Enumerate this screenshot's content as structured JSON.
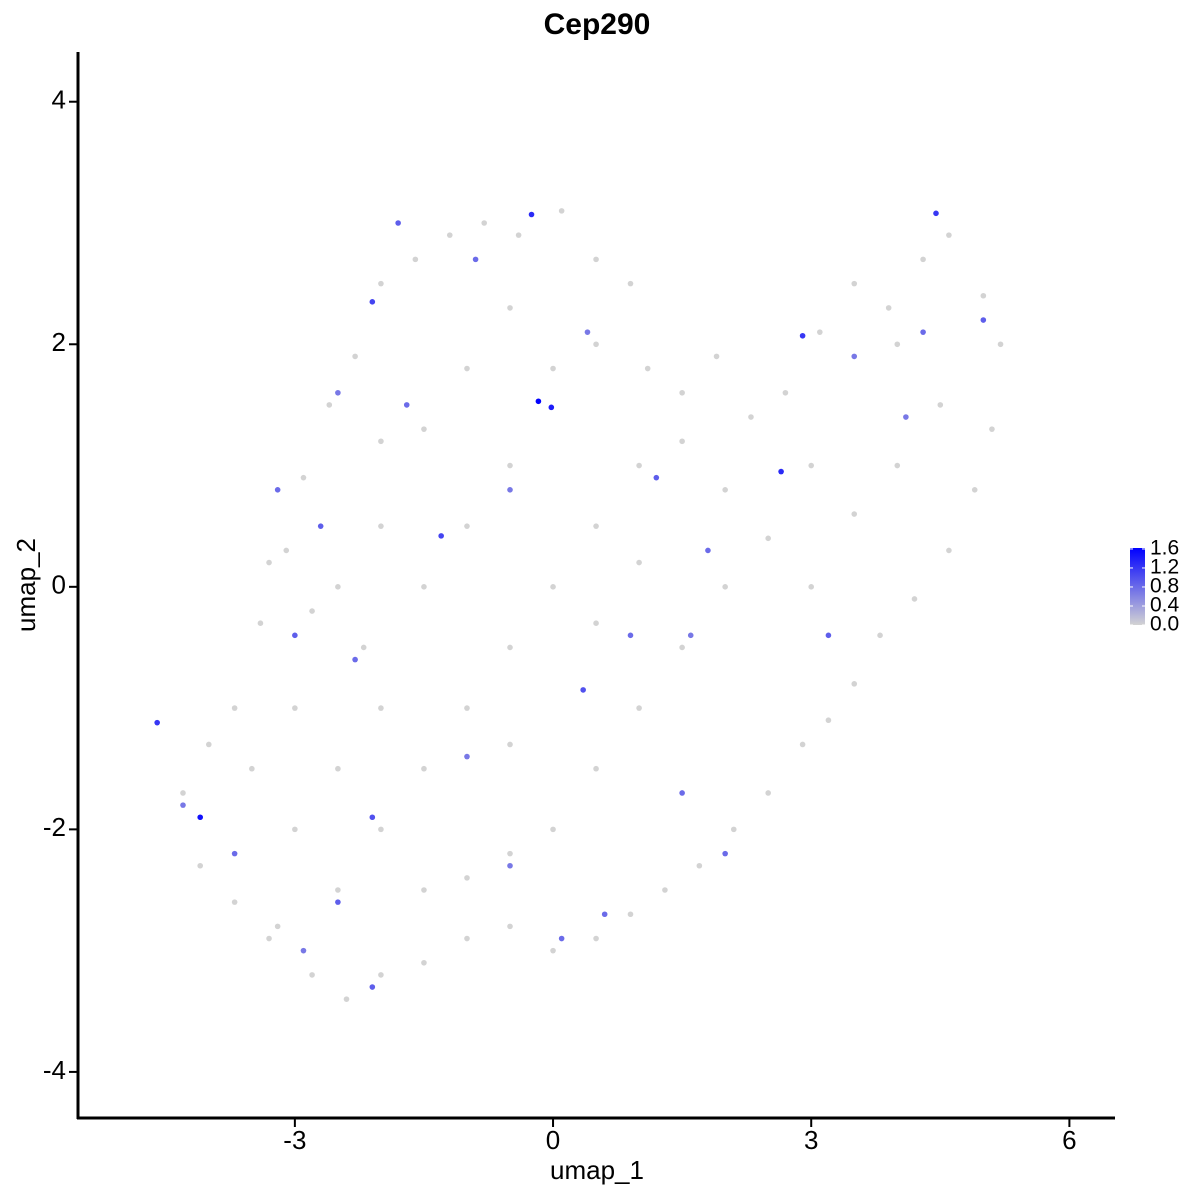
{
  "chart_data": {
    "type": "scatter",
    "title": "Cep290",
    "x_label": "umap_1",
    "y_label": "umap_2",
    "xlim": [
      -5.52,
      6.53
    ],
    "ylim": [
      -4.38,
      4.41
    ],
    "xticks": [
      -3,
      0,
      3,
      6
    ],
    "yticks": [
      -4,
      -2,
      0,
      2,
      4
    ],
    "low_color": "#d3d3d3",
    "high_color": "#0000ff",
    "colorlim": [
      0,
      1.62
    ],
    "colorticks": [
      {
        "value": 0,
        "label": "0.0"
      },
      0.4,
      0.8,
      1.2,
      1.6
    ],
    "x": [
      -3.5,
      -3.2,
      -3.0,
      -2.8,
      -3.1,
      -2.9,
      -2.6,
      -2.3,
      -2.0,
      -1.6,
      -1.2,
      -0.8,
      -0.4,
      0.1,
      0.5,
      0.9,
      1.1,
      1.5,
      1.9,
      2.3,
      2.7,
      3.1,
      3.5,
      3.9,
      4.3,
      4.6,
      5.0,
      5.2,
      5.1,
      4.9,
      4.6,
      4.2,
      3.8,
      3.5,
      3.2,
      2.9,
      2.5,
      2.1,
      1.7,
      1.3,
      0.9,
      0.5,
      0.0,
      -0.5,
      -1.0,
      -1.5,
      -2.0,
      -2.4,
      -2.8,
      -3.3,
      -3.7,
      -4.1,
      -4.3,
      -4.0,
      -3.7,
      -3.4,
      -3.3,
      -2.5,
      -2.0,
      -1.5,
      -1.0,
      -0.5,
      0,
      0.5,
      1.0,
      1.5,
      2.0,
      2.5,
      3.0,
      3.5,
      4.0,
      4.5,
      4.0,
      3.0,
      2.0,
      1.5,
      1.0,
      0.5,
      0,
      -0.5,
      -1.0,
      -1.5,
      -2.5,
      -3.0,
      -2.0,
      -1.5,
      -2.0,
      -2.5,
      -2.2,
      -1.0,
      -0.5,
      0,
      -1.0,
      -1.5,
      -2.0,
      -0.5,
      0.5,
      1.0,
      0.5,
      -0.5,
      -3.2,
      -2.5,
      -1.8,
      -0.9,
      0.4,
      1.2,
      1.8,
      3.5,
      4.3,
      5.0,
      4.1,
      -2.3,
      -3.0,
      -1.0,
      0.9,
      1.5,
      -0.5,
      -2.5,
      -3.7,
      -4.3,
      0.1,
      -2.1,
      -2.9,
      0.6,
      3.2,
      1.6,
      -1.7,
      -0.5,
      -2.7,
      2.0,
      -4.6,
      -4.1,
      -0.17,
      -0.02,
      -0.25,
      4.45,
      2.65,
      2.9,
      -2.1,
      -1.3,
      0.35,
      -2.1
    ],
    "y": [
      -1.5,
      -2.8,
      -1.0,
      -0.2,
      0.3,
      0.9,
      1.5,
      1.9,
      2.5,
      2.7,
      2.9,
      3.0,
      2.9,
      3.1,
      2.7,
      2.5,
      1.8,
      1.6,
      1.9,
      1.4,
      1.6,
      2.1,
      2.5,
      2.3,
      2.7,
      2.9,
      2.4,
      2.0,
      1.3,
      0.8,
      0.3,
      -0.1,
      -0.4,
      -0.8,
      -1.1,
      -1.3,
      -1.7,
      -2.0,
      -2.3,
      -2.5,
      -2.7,
      -2.9,
      -3.0,
      -2.8,
      -2.9,
      -3.1,
      -3.2,
      -3.4,
      -3.2,
      -2.9,
      -2.6,
      -2.3,
      -1.7,
      -1.3,
      -1.0,
      -0.3,
      0.2,
      -2.5,
      -2.0,
      -1.5,
      -1.0,
      -0.5,
      0,
      0.5,
      1.0,
      1.2,
      0.8,
      0.4,
      0.0,
      0.6,
      1.0,
      1.5,
      2.0,
      1.0,
      0.0,
      -0.5,
      -1.0,
      -1.5,
      -2,
      -2.2,
      -2.4,
      -2.5,
      -1.5,
      -2.0,
      -1.0,
      0.0,
      0.5,
      0.0,
      -0.5,
      0.5,
      1.0,
      1.8,
      1.8,
      1.3,
      1.2,
      2.3,
      2.0,
      0.2,
      -0.3,
      -1.3,
      0.8,
      1.6,
      3.0,
      2.7,
      2.1,
      0.9,
      0.3,
      1.9,
      2.1,
      2.2,
      1.4,
      -0.6,
      -0.4,
      -1.4,
      -0.4,
      -1.7,
      -2.3,
      -2.6,
      -2.2,
      -1.8,
      -2.9,
      -3.3,
      -3.0,
      -2.7,
      -0.4,
      -0.4,
      1.5,
      0.8,
      0.5,
      -2.2,
      -1.12,
      -1.9,
      1.53,
      1.48,
      3.07,
      3.08,
      0.95,
      2.07,
      2.35,
      0.42,
      -0.85,
      -1.9
    ],
    "values": [
      0,
      0,
      0,
      0,
      0,
      0,
      0,
      0,
      0,
      0,
      0,
      0,
      0,
      0,
      0,
      0,
      0,
      0,
      0,
      0,
      0,
      0,
      0,
      0,
      0,
      0,
      0,
      0,
      0,
      0,
      0,
      0,
      0,
      0,
      0,
      0,
      0,
      0,
      0,
      0,
      0,
      0,
      0,
      0,
      0,
      0,
      0,
      0,
      0,
      0,
      0,
      0,
      0,
      0,
      0,
      0,
      0,
      0,
      0,
      0,
      0,
      0,
      0,
      0,
      0,
      0,
      0,
      0,
      0,
      0,
      0,
      0,
      0,
      0,
      0,
      0,
      0,
      0,
      0,
      0,
      0,
      0,
      0,
      0,
      0,
      0,
      0,
      0,
      0,
      0,
      0,
      0,
      0,
      0,
      0,
      0,
      0,
      0,
      0,
      0,
      0.8,
      0.7,
      0.9,
      0.8,
      0.7,
      0.9,
      0.8,
      0.7,
      0.8,
      0.9,
      0.7,
      0.8,
      0.9,
      0.7,
      0.8,
      0.8,
      0.7,
      0.9,
      0.8,
      0.7,
      0.8,
      0.9,
      0.7,
      0.8,
      0.9,
      0.7,
      0.8,
      0.7,
      0.9,
      0.8,
      1.2,
      1.5,
      1.6,
      1.4,
      1.3,
      1.2,
      1.3,
      1.2,
      1.1,
      1.1,
      1.0,
      1.0
    ]
  }
}
